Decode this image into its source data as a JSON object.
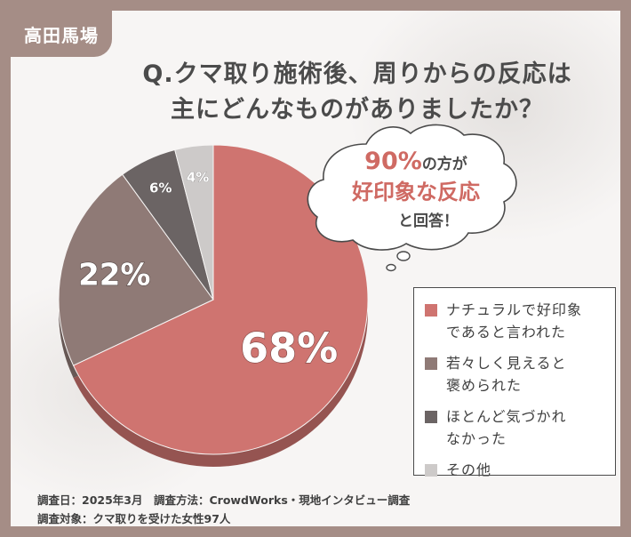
{
  "tag": {
    "label": "高田馬場"
  },
  "question": {
    "line1": "Q.クマ取り施術後、周りからの反応は",
    "line2": "主にどんなものがありましたか？"
  },
  "bubble": {
    "highlight_value": "90%",
    "line1_suffix": "の方が",
    "line2": "好印象な反応",
    "line3": "と回答！"
  },
  "chart_data": {
    "type": "pie",
    "title": "",
    "start": "12 o'clock, clockwise",
    "slices": [
      {
        "label": "ナチュラルで好印象\nであると言われた",
        "value": 68,
        "display": "68%",
        "color": "#cf7470"
      },
      {
        "label": "若々しく見えると\n褒められた",
        "value": 22,
        "display": "22%",
        "color": "#8f7a76"
      },
      {
        "label": "ほとんど気づかれ\nなかった",
        "value": 6,
        "display": "6%",
        "color": "#6b6464"
      },
      {
        "label": "その他",
        "value": 4,
        "display": "4%",
        "color": "#cdcac9"
      }
    ],
    "legend_position": "right"
  },
  "footnote": {
    "line1": "調査日：2025年3月　調査方法：CrowdWorks・現地インタビュー調査",
    "line2": "調査対象：クマ取りを受けた女性97人"
  },
  "colors": {
    "frame": "#a58d86",
    "accent_red": "#cf6a63",
    "text": "#4b4b4b"
  }
}
